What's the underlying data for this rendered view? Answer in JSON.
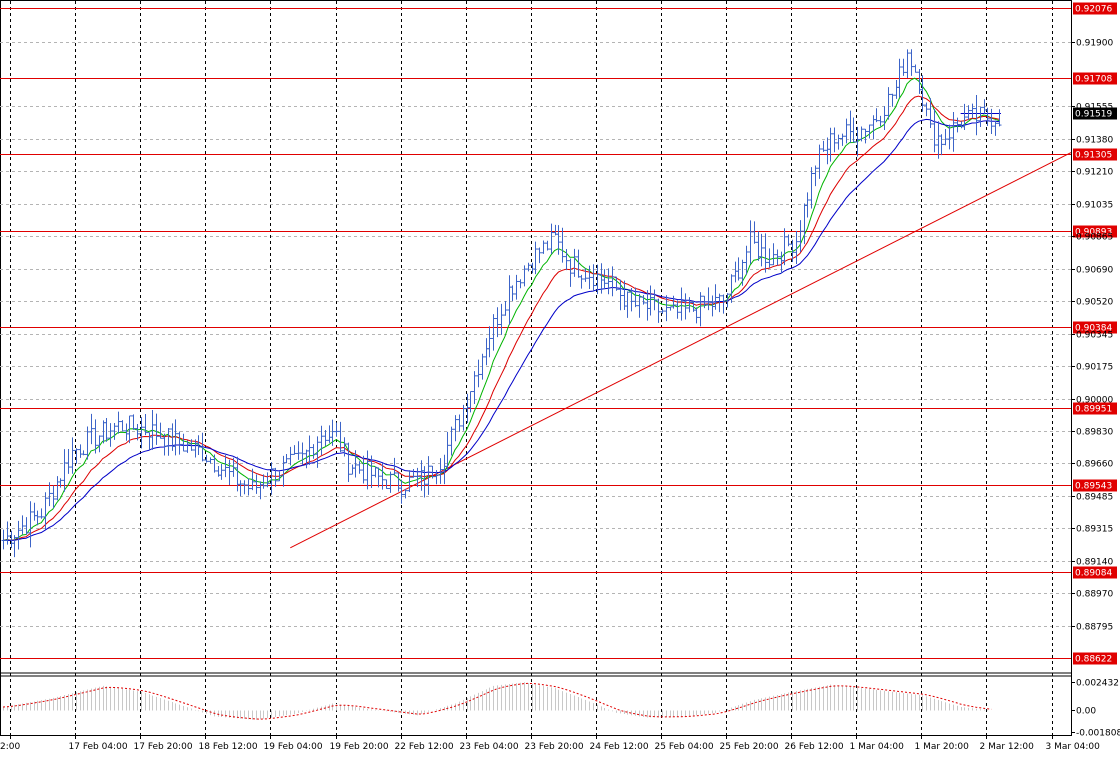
{
  "chart_data": {
    "type": "candlestick",
    "colors": {
      "background": "#ffffff",
      "grid": "#b4b4b4",
      "candle": "#3c64c8",
      "ma_fast": "#00b400",
      "ma_mid": "#dc0000",
      "ma_slow": "#0000c8",
      "level": "#e00000",
      "trend": "#e00000",
      "osc": "#c8c8c8",
      "osc_signal": "#e00000",
      "current_price_bg": "#000000"
    },
    "price_range": [
      0.8855,
      0.9211
    ],
    "price_ticks": [
      "0.91900",
      "0.91555",
      "0.91380",
      "0.91210",
      "0.91035",
      "0.90865",
      "0.90690",
      "0.90520",
      "0.90345",
      "0.90175",
      "0.90000",
      "0.89830",
      "0.89660",
      "0.89485",
      "0.89315",
      "0.89140",
      "0.88970",
      "0.88795"
    ],
    "time_labels": [
      "2:00",
      "17 Feb 04:00",
      "17 Feb 20:00",
      "18 Feb 12:00",
      "19 Feb 04:00",
      "19 Feb 20:00",
      "22 Feb 12:00",
      "23 Feb 04:00",
      "23 Feb 20:00",
      "24 Feb 12:00",
      "25 Feb 04:00",
      "25 Feb 20:00",
      "26 Feb 12:00",
      "1 Mar 04:00",
      "1 Mar 20:00",
      "2 Mar 12:00",
      "3 Mar 04:00"
    ],
    "levels": [
      {
        "label": "0.92076",
        "price": 0.92076
      },
      {
        "label": "0.91708",
        "price": 0.91708
      },
      {
        "label": "0.91305",
        "price": 0.91305
      },
      {
        "label": "0.90893",
        "price": 0.90893
      },
      {
        "label": "0.90384",
        "price": 0.90384
      },
      {
        "label": "0.89951",
        "price": 0.89951
      },
      {
        "label": "0.89543",
        "price": 0.89543
      },
      {
        "label": "0.89084",
        "price": 0.89084
      },
      {
        "label": "0.88622",
        "price": 0.88622
      }
    ],
    "current_price": {
      "label": "0.91519",
      "price": 0.91519
    },
    "trendline": {
      "from": {
        "bar": 75,
        "price": 0.8921
      },
      "to": {
        "bar": 274,
        "price": 0.9131
      }
    },
    "close_anchors": [
      [
        0,
        0.8925
      ],
      [
        10,
        0.894
      ],
      [
        18,
        0.8972
      ],
      [
        24,
        0.898
      ],
      [
        30,
        0.8986
      ],
      [
        38,
        0.8984
      ],
      [
        45,
        0.8977
      ],
      [
        52,
        0.8972
      ],
      [
        60,
        0.8958
      ],
      [
        65,
        0.8952
      ],
      [
        70,
        0.896
      ],
      [
        78,
        0.8968
      ],
      [
        83,
        0.8982
      ],
      [
        87,
        0.898
      ],
      [
        90,
        0.8966
      ],
      [
        98,
        0.8958
      ],
      [
        104,
        0.8955
      ],
      [
        110,
        0.8958
      ],
      [
        115,
        0.897
      ],
      [
        120,
        0.8995
      ],
      [
        126,
        0.903
      ],
      [
        132,
        0.9058
      ],
      [
        138,
        0.9075
      ],
      [
        144,
        0.9085
      ],
      [
        148,
        0.9072
      ],
      [
        152,
        0.9068
      ],
      [
        158,
        0.9062
      ],
      [
        164,
        0.905
      ],
      [
        170,
        0.9048
      ],
      [
        175,
        0.9045
      ],
      [
        180,
        0.9048
      ],
      [
        188,
        0.9052
      ],
      [
        195,
        0.9083
      ],
      [
        200,
        0.9075
      ],
      [
        207,
        0.9085
      ],
      [
        212,
        0.9125
      ],
      [
        217,
        0.914
      ],
      [
        223,
        0.9142
      ],
      [
        228,
        0.915
      ],
      [
        233,
        0.9165
      ],
      [
        236,
        0.9185
      ],
      [
        239,
        0.917
      ],
      [
        242,
        0.9142
      ],
      [
        245,
        0.9138
      ],
      [
        250,
        0.9148
      ],
      [
        256,
        0.915
      ],
      [
        260,
        0.915
      ]
    ],
    "bars_visible": 274,
    "oscillator": {
      "range": [
        -0.002,
        0.00285
      ],
      "ticks": [
        "0.002432",
        "0.00",
        "-0.001808"
      ],
      "anchors": [
        [
          0,
          0.0003
        ],
        [
          12,
          0.001
        ],
        [
          26,
          0.0021
        ],
        [
          36,
          0.0016
        ],
        [
          46,
          0.0005
        ],
        [
          55,
          -0.0005
        ],
        [
          66,
          -0.0008
        ],
        [
          76,
          -0.0003
        ],
        [
          86,
          0.0006
        ],
        [
          96,
          0.0001
        ],
        [
          108,
          -0.0004
        ],
        [
          118,
          0.0006
        ],
        [
          128,
          0.0021
        ],
        [
          136,
          0.0024
        ],
        [
          144,
          0.0019
        ],
        [
          152,
          0.0009
        ],
        [
          160,
          -0.0002
        ],
        [
          168,
          -0.0006
        ],
        [
          178,
          -0.0005
        ],
        [
          186,
          -0.0002
        ],
        [
          196,
          0.0009
        ],
        [
          206,
          0.0016
        ],
        [
          216,
          0.0022
        ],
        [
          224,
          0.0019
        ],
        [
          232,
          0.0016
        ],
        [
          240,
          0.0013
        ],
        [
          250,
          0.0003
        ],
        [
          258,
          0.0
        ]
      ]
    }
  }
}
